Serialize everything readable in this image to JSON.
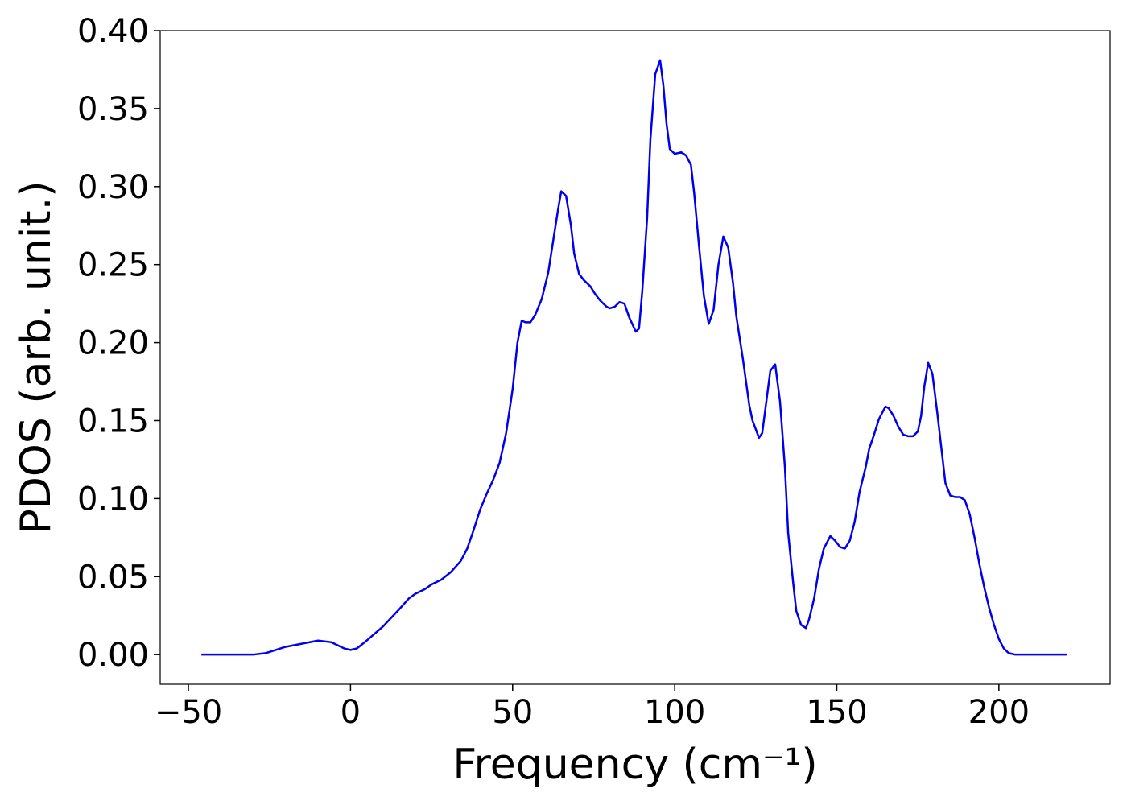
{
  "chart_data": {
    "type": "line",
    "xlabel": "Frequency (cm⁻¹)",
    "ylabel": "PDOS (arb. unit.)",
    "color": "#0000ee",
    "x": [
      -46,
      -30,
      -26,
      -20,
      -15,
      -10,
      -6,
      -2,
      0,
      2,
      5,
      10,
      15,
      18,
      20,
      23,
      25,
      28,
      31,
      34,
      36,
      38,
      40,
      42,
      44,
      46,
      48,
      50,
      51.5,
      52.8,
      54,
      55.5,
      57,
      59,
      61,
      62.5,
      64,
      65,
      66.5,
      68,
      69,
      70.5,
      72,
      74,
      75.5,
      77,
      79,
      80,
      81.5,
      83,
      84.5,
      86,
      88,
      89,
      90,
      91.5,
      92.5,
      94,
      95.5,
      96.5,
      97.5,
      98.5,
      100,
      102,
      103.5,
      105,
      106,
      107.5,
      109,
      110.5,
      112,
      113.5,
      115,
      116.5,
      118,
      119,
      121,
      123,
      124,
      126,
      127,
      129.5,
      131,
      132.5,
      134,
      135,
      136.5,
      137.5,
      139,
      140.5,
      141.5,
      143,
      144.5,
      146,
      148,
      149.5,
      151,
      152.5,
      154,
      155.5,
      157,
      159,
      160,
      161.5,
      163,
      164,
      165,
      166,
      167.5,
      169,
      170.5,
      172,
      173.5,
      175,
      176,
      177,
      178.2,
      179.5,
      181,
      182.5,
      183.5,
      185,
      186.5,
      188,
      189.5,
      191,
      192.5,
      194,
      195.5,
      197,
      198.5,
      200,
      201.5,
      203,
      205,
      221
    ],
    "values": [
      0,
      0,
      0.001,
      0.005,
      0.007,
      0.009,
      0.008,
      0.004,
      0.003,
      0.004,
      0.009,
      0.018,
      0.029,
      0.036,
      0.039,
      0.042,
      0.045,
      0.048,
      0.053,
      0.06,
      0.068,
      0.08,
      0.093,
      0.103,
      0.112,
      0.123,
      0.142,
      0.17,
      0.2,
      0.214,
      0.213,
      0.213,
      0.218,
      0.228,
      0.245,
      0.265,
      0.285,
      0.297,
      0.294,
      0.275,
      0.257,
      0.244,
      0.24,
      0.236,
      0.231,
      0.227,
      0.223,
      0.222,
      0.223,
      0.226,
      0.225,
      0.216,
      0.207,
      0.209,
      0.233,
      0.28,
      0.33,
      0.372,
      0.381,
      0.365,
      0.34,
      0.324,
      0.321,
      0.322,
      0.32,
      0.314,
      0.296,
      0.262,
      0.23,
      0.212,
      0.221,
      0.25,
      0.268,
      0.261,
      0.238,
      0.217,
      0.19,
      0.16,
      0.15,
      0.139,
      0.142,
      0.182,
      0.186,
      0.162,
      0.12,
      0.078,
      0.047,
      0.028,
      0.019,
      0.017,
      0.023,
      0.036,
      0.055,
      0.068,
      0.076,
      0.073,
      0.069,
      0.068,
      0.073,
      0.085,
      0.104,
      0.121,
      0.132,
      0.141,
      0.151,
      0.155,
      0.159,
      0.158,
      0.153,
      0.146,
      0.141,
      0.14,
      0.14,
      0.143,
      0.153,
      0.172,
      0.187,
      0.18,
      0.155,
      0.128,
      0.11,
      0.102,
      0.101,
      0.101,
      0.099,
      0.09,
      0.075,
      0.058,
      0.043,
      0.03,
      0.019,
      0.01,
      0.004,
      0.001,
      0,
      0
    ],
    "xlim": [
      -58.7,
      234.3
    ],
    "ylim": [
      -0.019,
      0.4
    ],
    "xticks": [
      {
        "value": -50,
        "label": "−50"
      },
      0,
      50,
      100,
      150,
      200
    ],
    "yticks": [
      {
        "value": 0,
        "label": "0.00"
      },
      {
        "value": 0.05,
        "label": "0.05"
      },
      {
        "value": 0.1,
        "label": "0.10"
      },
      {
        "value": 0.15,
        "label": "0.15"
      },
      {
        "value": 0.2,
        "label": "0.20"
      },
      {
        "value": 0.25,
        "label": "0.25"
      },
      {
        "value": 0.3,
        "label": "0.30"
      },
      {
        "value": 0.35,
        "label": "0.35"
      },
      {
        "value": 0.4,
        "label": "0.40"
      }
    ],
    "grid": false
  }
}
